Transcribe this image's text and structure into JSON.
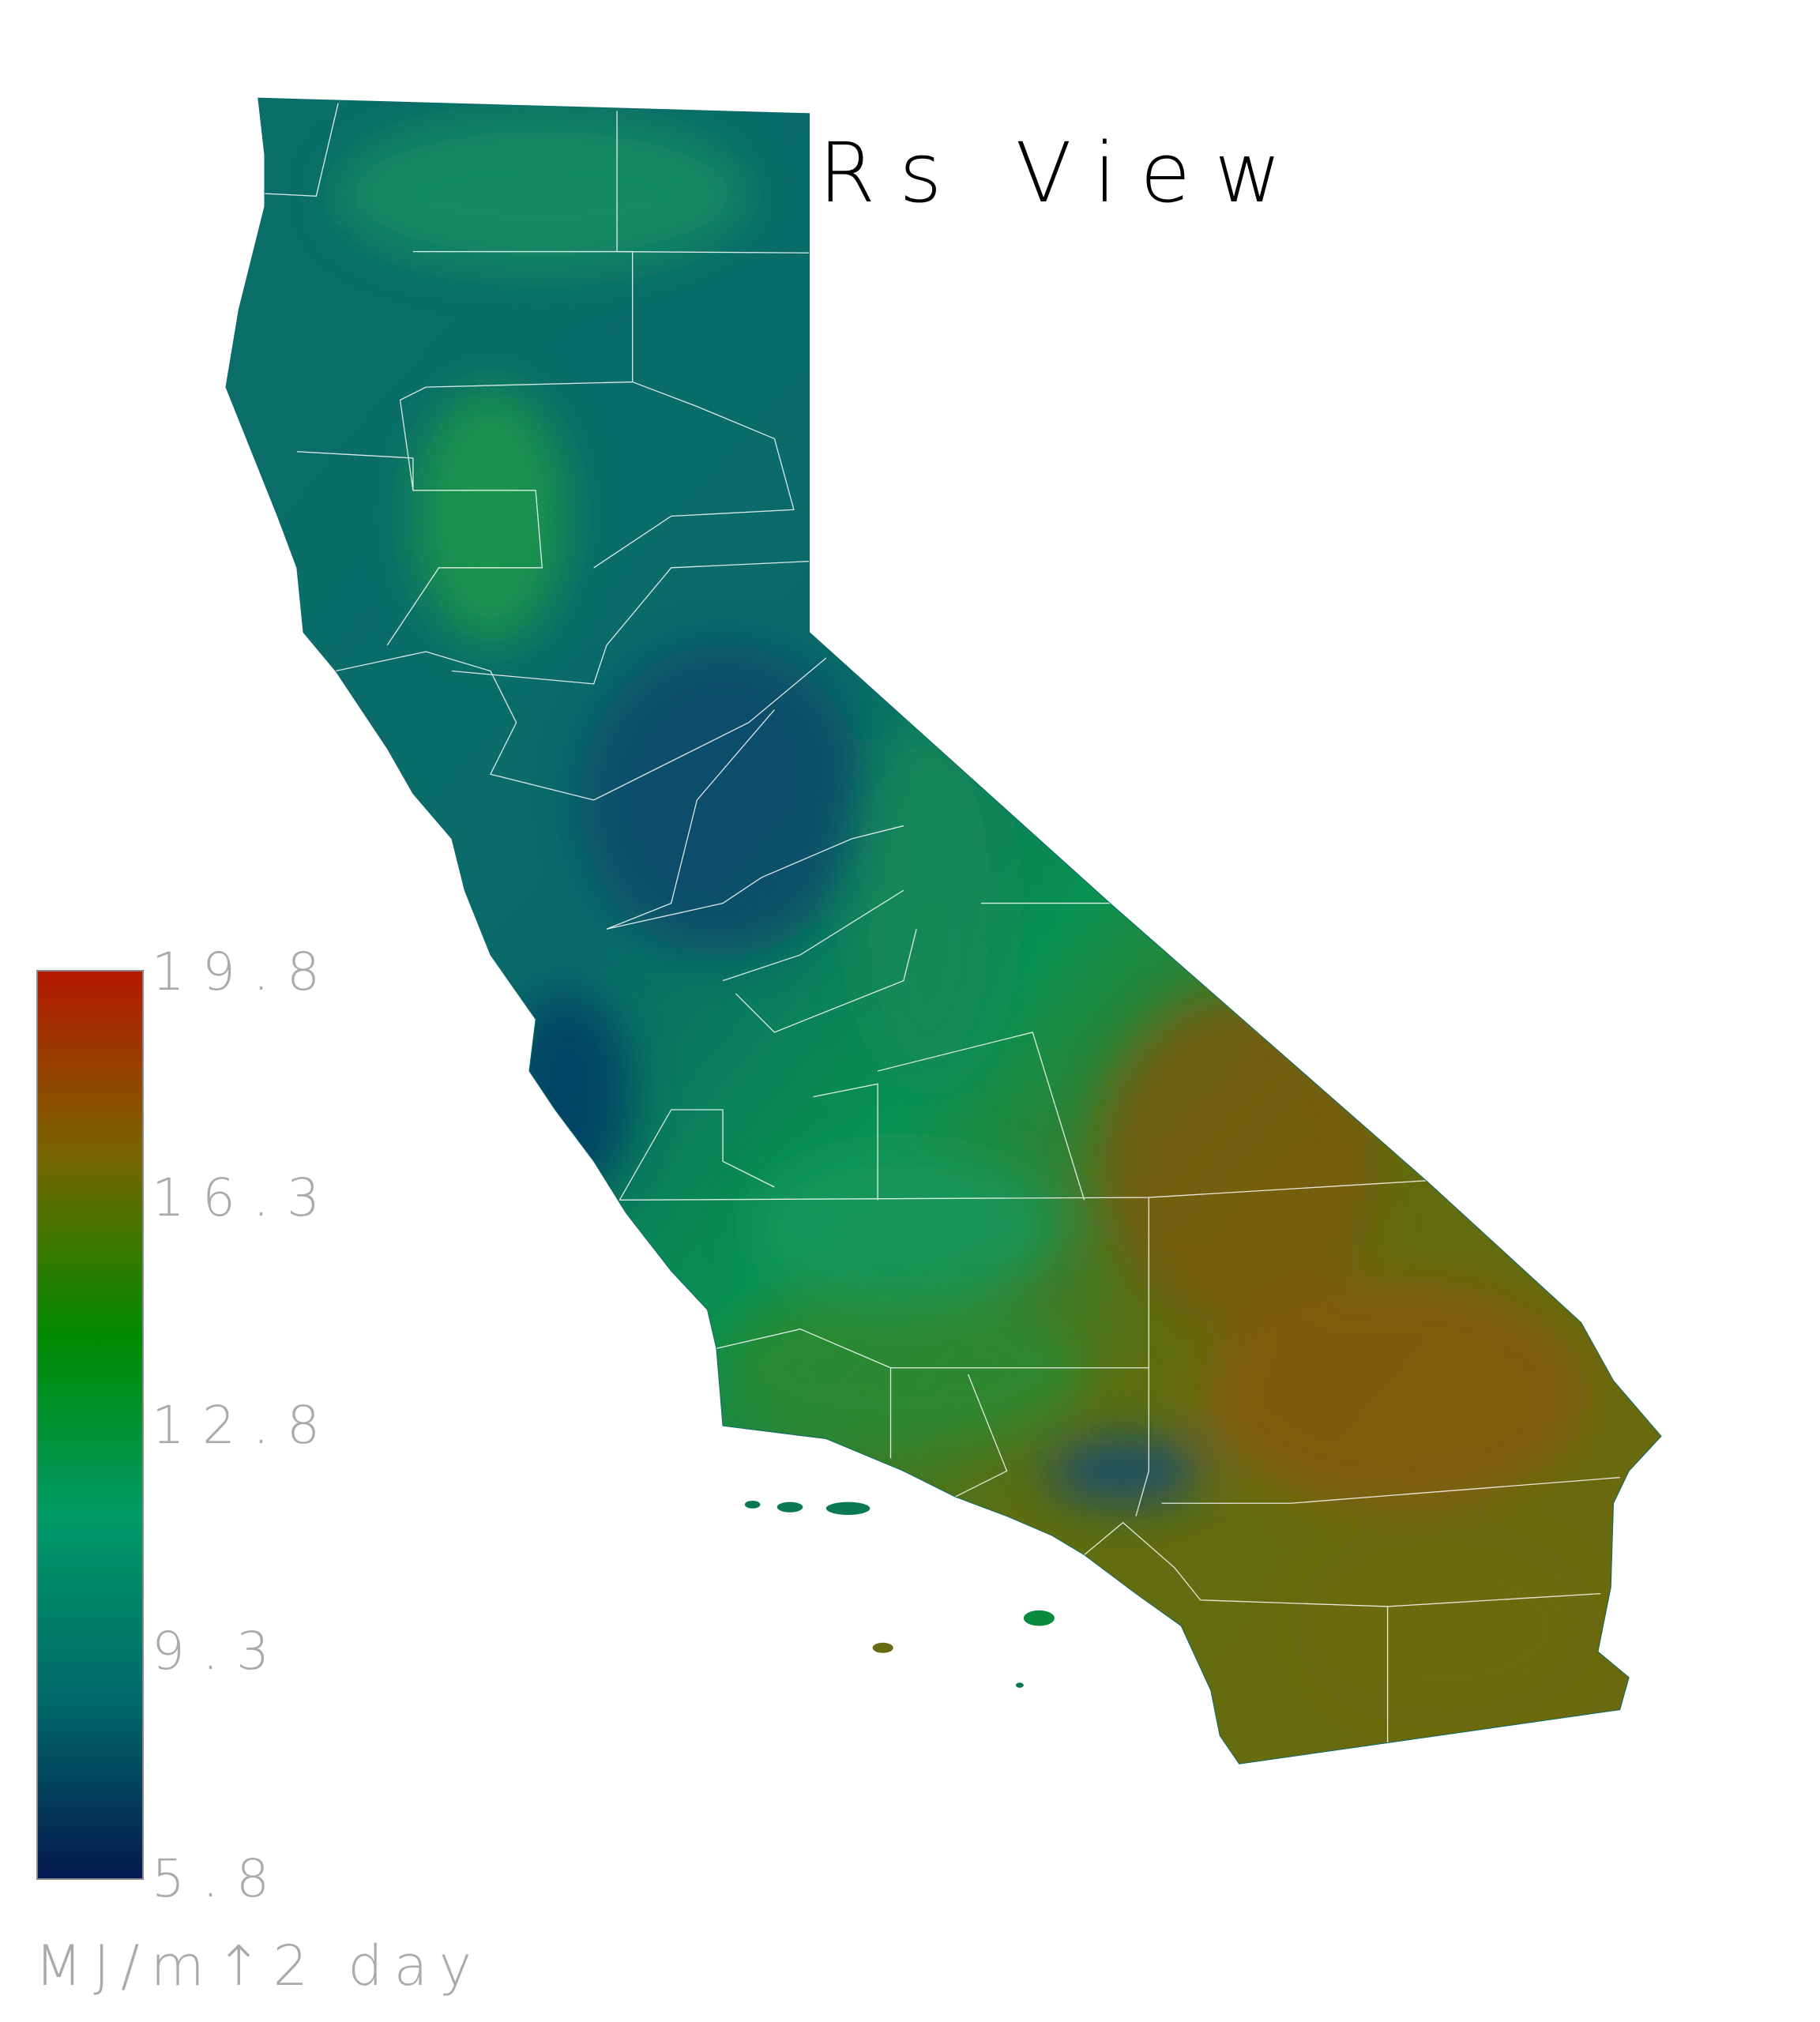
{
  "title": "Rs View",
  "colorbar": {
    "ticks": [
      "19.8",
      "16.3",
      "12.8",
      "9.3",
      "5.8"
    ],
    "min": 5.8,
    "max": 19.8,
    "unit": "MJ/m↑2 day",
    "colors": [
      "#05184f",
      "#006a6a",
      "#009a66",
      "#008a00",
      "#7a6400",
      "#b41800"
    ]
  },
  "map": {
    "region": "California",
    "boundary_color": "#ffffff",
    "low_color": "#0a3d6b",
    "mid_color": "#0a9a50",
    "high_color": "#8a5a10"
  }
}
